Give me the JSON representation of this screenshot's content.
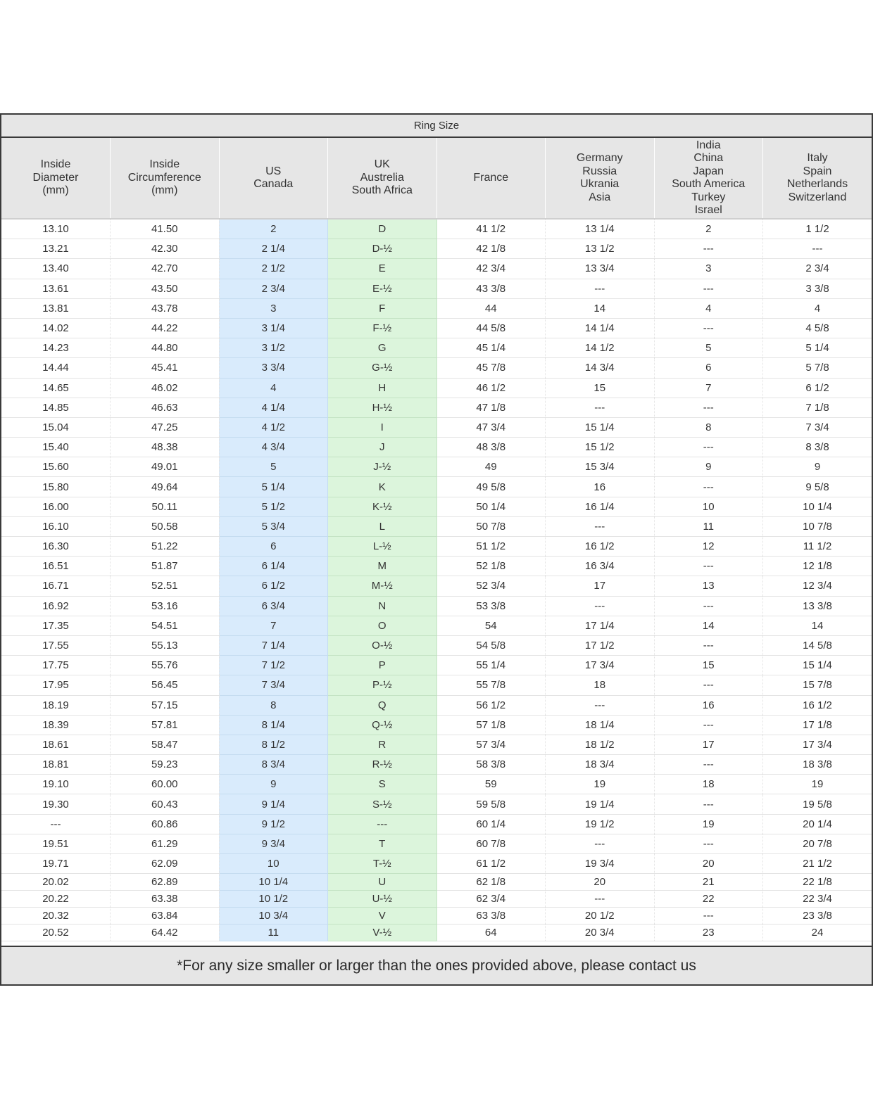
{
  "chart": {
    "title": "Ring Size",
    "footer": "*For any size smaller or larger than the ones provided above, please contact us",
    "highlight_colors": {
      "us_canada": "#d9ebfc",
      "uk_australia": "#dcf5dc"
    }
  },
  "columns": [
    {
      "key": "diameter",
      "lines": [
        "Inside",
        "Diameter",
        "(mm)"
      ]
    },
    {
      "key": "circumference",
      "lines": [
        "Inside",
        "Circumference",
        "(mm)"
      ]
    },
    {
      "key": "us",
      "lines": [
        "US",
        "Canada"
      ]
    },
    {
      "key": "uk",
      "lines": [
        "UK",
        "Austrelia",
        "South Africa"
      ]
    },
    {
      "key": "france",
      "lines": [
        "France"
      ]
    },
    {
      "key": "germany",
      "lines": [
        "Germany",
        "Russia",
        "Ukrania",
        "Asia"
      ]
    },
    {
      "key": "india",
      "lines": [
        "India",
        "China",
        "Japan",
        "South America",
        "Turkey",
        "Israel"
      ]
    },
    {
      "key": "italy",
      "lines": [
        "Italy",
        "Spain",
        "Netherlands",
        "Switzerland"
      ]
    }
  ],
  "rows": [
    [
      "13.10",
      "41.50",
      "2",
      "D",
      "41 1/2",
      "13 1/4",
      "2",
      "1 1/2"
    ],
    [
      "13.21",
      "42.30",
      "2 1/4",
      "D-½",
      "42 1/8",
      "13 1/2",
      "---",
      "---"
    ],
    [
      "13.40",
      "42.70",
      "2 1/2",
      "E",
      "42 3/4",
      "13 3/4",
      "3",
      "2 3/4"
    ],
    [
      "13.61",
      "43.50",
      "2 3/4",
      "E-½",
      "43 3/8",
      "---",
      "---",
      "3 3/8"
    ],
    [
      "13.81",
      "43.78",
      "3",
      "F",
      "44",
      "14",
      "4",
      "4"
    ],
    [
      "14.02",
      "44.22",
      "3 1/4",
      "F-½",
      "44 5/8",
      "14 1/4",
      "---",
      "4 5/8"
    ],
    [
      "14.23",
      "44.80",
      "3 1/2",
      "G",
      "45 1/4",
      "14 1/2",
      "5",
      "5 1/4"
    ],
    [
      "14.44",
      "45.41",
      "3 3/4",
      "G-½",
      "45 7/8",
      "14 3/4",
      "6",
      "5 7/8"
    ],
    [
      "14.65",
      "46.02",
      "4",
      "H",
      "46 1/2",
      "15",
      "7",
      "6 1/2"
    ],
    [
      "14.85",
      "46.63",
      "4 1/4",
      "H-½",
      "47 1/8",
      "---",
      "---",
      "7 1/8"
    ],
    [
      "15.04",
      "47.25",
      "4 1/2",
      "I",
      "47 3/4",
      "15 1/4",
      "8",
      "7 3/4"
    ],
    [
      "15.40",
      "48.38",
      "4 3/4",
      "J",
      "48 3/8",
      "15 1/2",
      "---",
      "8 3/8"
    ],
    [
      "15.60",
      "49.01",
      "5",
      "J-½",
      "49",
      "15 3/4",
      "9",
      "9"
    ],
    [
      "15.80",
      "49.64",
      "5 1/4",
      "K",
      "49 5/8",
      "16",
      "---",
      "9 5/8"
    ],
    [
      "16.00",
      "50.11",
      "5 1/2",
      "K-½",
      "50 1/4",
      "16 1/4",
      "10",
      "10 1/4"
    ],
    [
      "16.10",
      "50.58",
      "5 3/4",
      "L",
      "50 7/8",
      "---",
      "11",
      "10 7/8"
    ],
    [
      "16.30",
      "51.22",
      "6",
      "L-½",
      "51 1/2",
      "16 1/2",
      "12",
      "11 1/2"
    ],
    [
      "16.51",
      "51.87",
      "6 1/4",
      "M",
      "52 1/8",
      "16 3/4",
      "---",
      "12 1/8"
    ],
    [
      "16.71",
      "52.51",
      "6 1/2",
      "M-½",
      "52 3/4",
      "17",
      "13",
      "12 3/4"
    ],
    [
      "16.92",
      "53.16",
      "6 3/4",
      "N",
      "53 3/8",
      "---",
      "---",
      "13 3/8"
    ],
    [
      "17.35",
      "54.51",
      "7",
      "O",
      "54",
      "17 1/4",
      "14",
      "14"
    ],
    [
      "17.55",
      "55.13",
      "7 1/4",
      "O-½",
      "54 5/8",
      "17 1/2",
      "---",
      "14 5/8"
    ],
    [
      "17.75",
      "55.76",
      "7 1/2",
      "P",
      "55 1/4",
      "17 3/4",
      "15",
      "15 1/4"
    ],
    [
      "17.95",
      "56.45",
      "7 3/4",
      "P-½",
      "55 7/8",
      "18",
      "---",
      "15 7/8"
    ],
    [
      "18.19",
      "57.15",
      "8",
      "Q",
      "56 1/2",
      "---",
      "16",
      "16 1/2"
    ],
    [
      "18.39",
      "57.81",
      "8 1/4",
      "Q-½",
      "57 1/8",
      "18 1/4",
      "---",
      "17 1/8"
    ],
    [
      "18.61",
      "58.47",
      "8 1/2",
      "R",
      "57 3/4",
      "18 1/2",
      "17",
      "17 3/4"
    ],
    [
      "18.81",
      "59.23",
      "8 3/4",
      "R-½",
      "58 3/8",
      "18 3/4",
      "---",
      "18 3/8"
    ],
    [
      "19.10",
      "60.00",
      "9",
      "S",
      "59",
      "19",
      "18",
      "19"
    ],
    [
      "19.30",
      "60.43",
      "9 1/4",
      "S-½",
      "59 5/8",
      "19 1/4",
      "---",
      "19 5/8"
    ],
    [
      "---",
      "60.86",
      "9 1/2",
      "---",
      "60 1/4",
      "19 1/2",
      "19",
      "20 1/4"
    ],
    [
      "19.51",
      "61.29",
      "9 3/4",
      "T",
      "60 7/8",
      "---",
      "---",
      "20 7/8"
    ],
    [
      "19.71",
      "62.09",
      "10",
      "T-½",
      "61 1/2",
      "19 3/4",
      "20",
      "21 1/2"
    ],
    [
      "20.02",
      "62.89",
      "10 1/4",
      "U",
      "62 1/8",
      "20",
      "21",
      "22 1/8"
    ],
    [
      "20.22",
      "63.38",
      "10 1/2",
      "U-½",
      "62 3/4",
      "---",
      "22",
      "22 3/4"
    ],
    [
      "20.32",
      "63.84",
      "10 3/4",
      "V",
      "63 3/8",
      "20 1/2",
      "---",
      "23 3/8"
    ],
    [
      "20.52",
      "64.42",
      "11",
      "V-½",
      "64",
      "20 3/4",
      "23",
      "24"
    ]
  ]
}
